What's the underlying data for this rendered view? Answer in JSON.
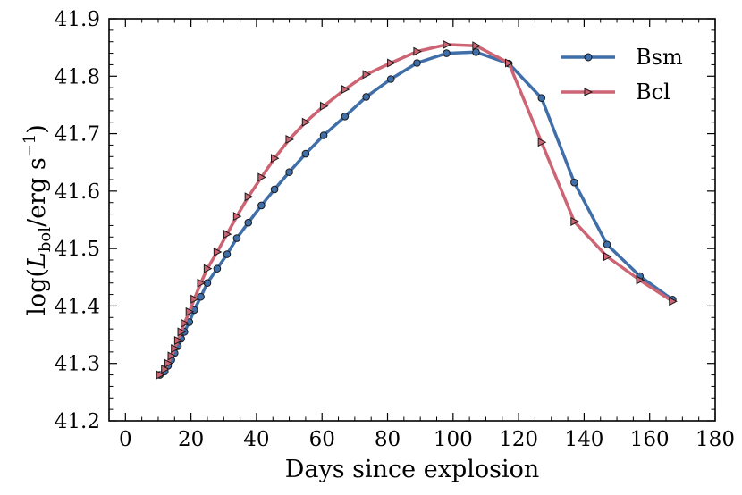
{
  "chart_data": {
    "type": "line",
    "title": "",
    "xlabel": "Days since explosion",
    "ylabel": "log(L_bol / erg s^-1)",
    "ylabel_parts": {
      "prefix": "log(",
      "symbol": "L",
      "subscript": "bol",
      "unit": "/erg s",
      "superscript": "−1",
      "suffix": ")"
    },
    "xlim": [
      -5,
      180
    ],
    "ylim": [
      41.2,
      41.9
    ],
    "xticks": [
      "0",
      "20",
      "40",
      "60",
      "80",
      "100",
      "120",
      "140",
      "160",
      "180"
    ],
    "yticks": [
      "41.2",
      "41.3",
      "41.4",
      "41.5",
      "41.6",
      "41.7",
      "41.8",
      "41.9"
    ],
    "legend_position": "top-right",
    "series": [
      {
        "name": "Bsm",
        "color": "#3f6ea8",
        "marker": "circle",
        "x": [
          10.5,
          12,
          13,
          14,
          15,
          16,
          17,
          18,
          19.5,
          21,
          23,
          25,
          28,
          31,
          34,
          37.5,
          41.5,
          45.5,
          50,
          55,
          60.5,
          67,
          73.5,
          81,
          89,
          98,
          107,
          117,
          127,
          137,
          147,
          157,
          167
        ],
        "y": [
          41.28,
          41.286,
          41.296,
          41.306,
          41.318,
          41.33,
          41.343,
          41.355,
          41.372,
          41.393,
          41.416,
          41.44,
          41.465,
          41.49,
          41.518,
          41.545,
          41.575,
          41.603,
          41.633,
          41.665,
          41.697,
          41.73,
          41.764,
          41.795,
          41.823,
          41.84,
          41.842,
          41.822,
          41.762,
          41.615,
          41.507,
          41.452,
          41.411
        ]
      },
      {
        "name": "Bcl",
        "color": "#cd6474",
        "marker": "triangle-right",
        "x": [
          10.5,
          12,
          13,
          14,
          15,
          16,
          17,
          18,
          19.5,
          21,
          23,
          25,
          28,
          31,
          34,
          37.5,
          41.5,
          45.5,
          50,
          55,
          60.5,
          67,
          73.5,
          81,
          89,
          98,
          107,
          117,
          127,
          137,
          147,
          157,
          167
        ],
        "y": [
          41.28,
          41.29,
          41.3,
          41.313,
          41.326,
          41.34,
          41.355,
          41.37,
          41.39,
          41.412,
          41.44,
          41.465,
          41.494,
          41.525,
          41.556,
          41.59,
          41.624,
          41.657,
          41.69,
          41.72,
          41.748,
          41.777,
          41.803,
          41.823,
          41.843,
          41.855,
          41.853,
          41.823,
          41.685,
          41.547,
          41.486,
          41.445,
          41.408
        ]
      }
    ]
  }
}
